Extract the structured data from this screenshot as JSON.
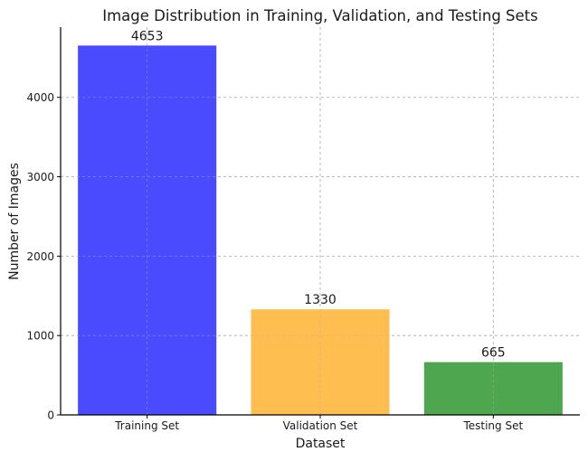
{
  "chart_data": {
    "type": "bar",
    "title": "Image Distribution in Training, Validation, and Testing Sets",
    "xlabel": "Dataset",
    "ylabel": "Number of Images",
    "categories": [
      "Training Set",
      "Validation Set",
      "Testing Set"
    ],
    "values": [
      4653,
      1330,
      665
    ],
    "data_labels": [
      "4653",
      "1330",
      "665"
    ],
    "colors": [
      "#4a4aff",
      "#ffbe4f",
      "#4ea64e"
    ],
    "ylim": [
      0,
      4885
    ],
    "yticks": [
      0,
      1000,
      2000,
      3000,
      4000
    ],
    "ytick_labels": [
      "0",
      "1000",
      "2000",
      "3000",
      "4000"
    ],
    "grid": true
  }
}
